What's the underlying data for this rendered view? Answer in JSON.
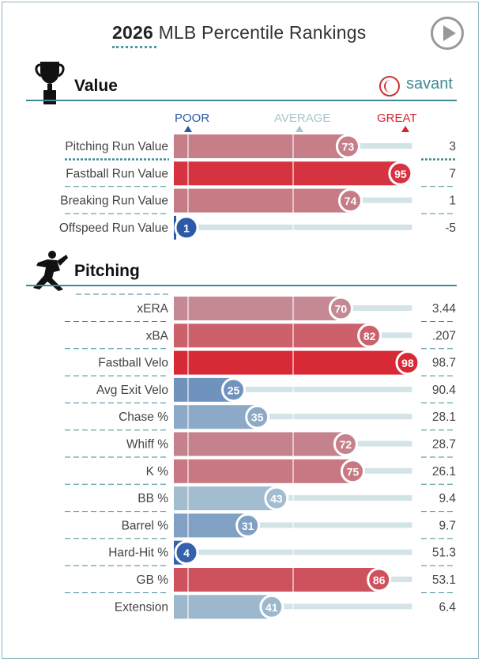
{
  "title": {
    "year": "2026",
    "text": "MLB Percentile Rankings"
  },
  "brand": "savant",
  "scale_labels": {
    "poor": "POOR",
    "average": "AVERAGE",
    "great": "GREAT"
  },
  "colors": {
    "great": "#d8222f",
    "poor": "#2958a7",
    "average": "#b6cdd5",
    "track": "#d3e3e7",
    "accent": "#3f8a93"
  },
  "chart_data": [
    {
      "type": "bar",
      "title": "Value",
      "xlim": [
        0,
        100
      ],
      "categories": [
        "Pitching Run Value",
        "Fastball Run Value",
        "Breaking Run Value",
        "Offspeed Run Value"
      ],
      "percentiles": [
        73,
        95,
        74,
        1
      ],
      "values": [
        "3",
        "7",
        "1",
        "-5"
      ]
    },
    {
      "type": "bar",
      "title": "Pitching",
      "xlim": [
        0,
        100
      ],
      "categories": [
        "xERA",
        "xBA",
        "Fastball Velo",
        "Avg Exit Velo",
        "Chase %",
        "Whiff %",
        "K %",
        "BB %",
        "Barrel %",
        "Hard-Hit %",
        "GB %",
        "Extension"
      ],
      "percentiles": [
        70,
        82,
        98,
        25,
        35,
        72,
        75,
        43,
        31,
        4,
        86,
        41
      ],
      "values": [
        "3.44",
        ".207",
        "98.7",
        "90.4",
        "28.1",
        "28.7",
        "26.1",
        "9.4",
        "9.7",
        "51.3",
        "53.1",
        "6.4"
      ]
    }
  ]
}
